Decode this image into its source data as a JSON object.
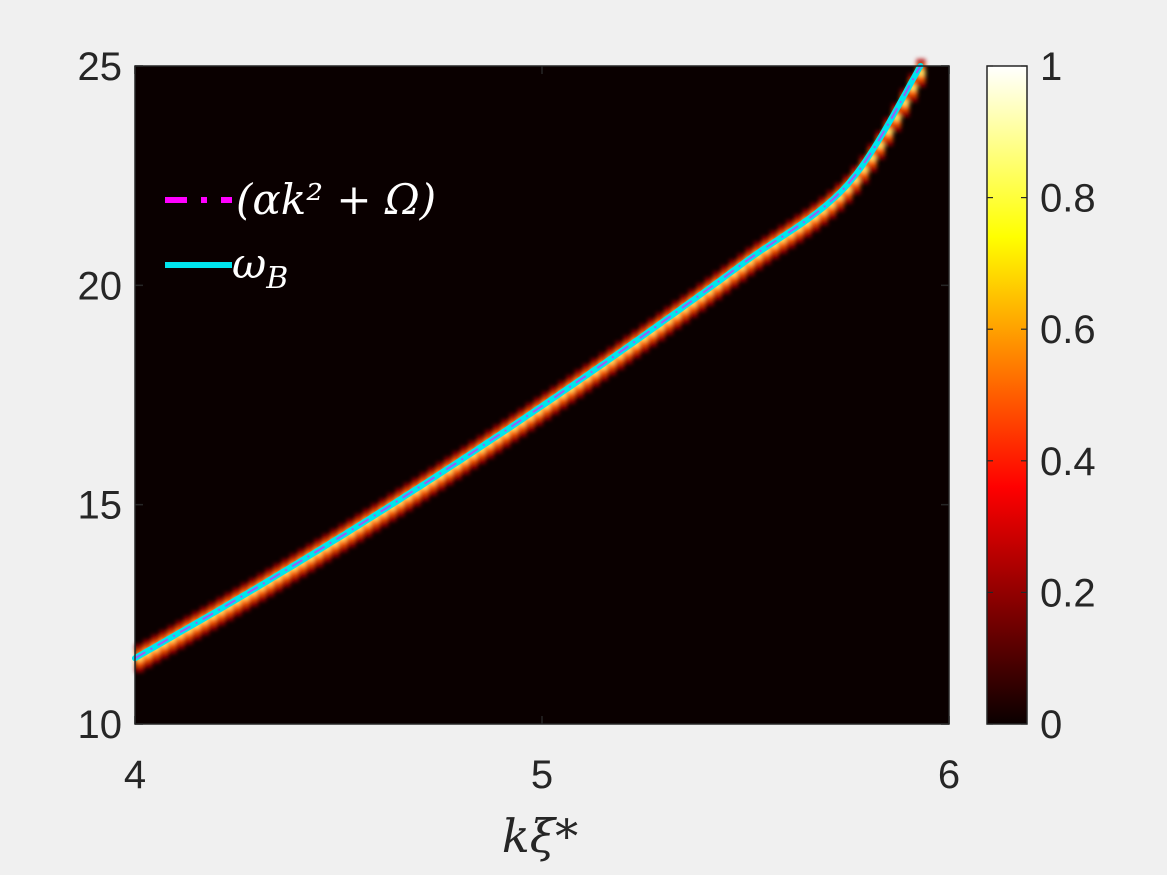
{
  "chart_data": {
    "type": "heatmap",
    "title": "",
    "xlabel": "kξ*",
    "ylabel": "",
    "xlim": [
      4,
      6
    ],
    "ylim": [
      10,
      25
    ],
    "x_ticks": [
      "4",
      "5",
      "6"
    ],
    "y_ticks": [
      "10",
      "15",
      "20",
      "25"
    ],
    "colorbar": {
      "range": [
        0,
        1
      ],
      "ticks": [
        "0",
        "0.2",
        "0.4",
        "0.6",
        "0.8",
        "1"
      ],
      "colormap": "hot"
    },
    "series": [
      {
        "name": "(αk² + Ω)",
        "style": "dash-dot",
        "color": "#ff00ff",
        "x": [
          4.0,
          4.25,
          4.5,
          4.75,
          5.0,
          5.25,
          5.5,
          5.75,
          5.93
        ],
        "y": [
          11.5,
          12.84,
          14.24,
          15.71,
          17.25,
          18.86,
          20.54,
          22.29,
          25.0
        ]
      },
      {
        "name": "ω_B",
        "style": "solid",
        "color": "#00ffff",
        "x": [
          4.0,
          4.25,
          4.5,
          4.75,
          5.0,
          5.25,
          5.5,
          5.75,
          5.93
        ],
        "y": [
          11.5,
          12.84,
          14.24,
          15.71,
          17.25,
          18.86,
          20.54,
          22.29,
          25.0
        ]
      }
    ],
    "legend_position": "top-left",
    "background_color": "#0a0000"
  },
  "legend": {
    "item1": "(αk² + Ω)",
    "item2": "ω",
    "item2_sub": "B"
  }
}
